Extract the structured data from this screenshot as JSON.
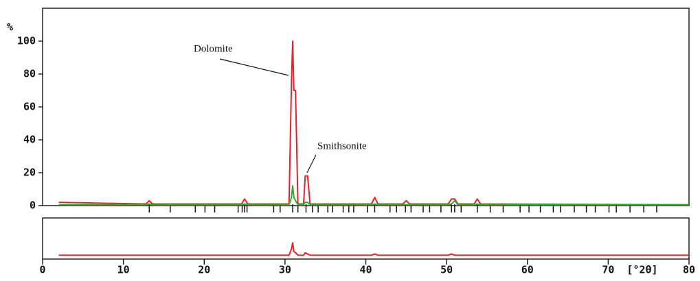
{
  "chart_data": {
    "type": "line",
    "y_label": "%",
    "x_label": "[°2θ]",
    "annotations": [
      "Dolomite",
      "Smithsonite"
    ],
    "x": [
      2,
      12.8,
      13.2,
      13.6,
      24.6,
      25,
      25.4,
      30.5,
      30.8,
      30.95,
      31.1,
      31.3,
      31.6,
      32.3,
      32.5,
      32.8,
      33.1,
      40.7,
      41.1,
      41.5,
      44.6,
      45,
      45.4,
      50.2,
      50.6,
      51,
      51.4,
      53.4,
      53.8,
      54.2,
      80
    ],
    "series": [
      {
        "color": "#e8202a",
        "values": [
          2,
          1,
          3,
          1,
          1,
          4,
          1,
          1,
          75,
          100,
          70,
          70,
          1,
          1,
          18,
          18,
          1,
          1,
          5,
          1,
          1,
          3,
          1,
          1,
          4,
          4,
          1,
          1,
          4,
          1,
          0.5
        ]
      },
      {
        "color": "#2eaa2e",
        "values": [
          0.5,
          0.5,
          1,
          0.5,
          0.5,
          1,
          0.5,
          0.5,
          5,
          12,
          5,
          3,
          0.5,
          0.5,
          2,
          2,
          0.5,
          0.5,
          1,
          0.5,
          0.5,
          0.5,
          0.5,
          0.5,
          1,
          3,
          0.5,
          0.5,
          1,
          0.5,
          0.5
        ]
      },
      {
        "color": "#e8202a",
        "axis": "y2",
        "values": [
          0,
          0,
          0,
          0,
          0,
          0,
          0,
          0,
          5,
          10,
          3,
          2,
          0,
          0,
          2,
          1,
          0,
          0,
          1,
          0,
          0,
          0,
          0,
          0,
          1,
          0,
          0,
          0,
          0,
          0,
          0
        ]
      }
    ],
    "reflections": [
      13.2,
      15.8,
      18.9,
      20.1,
      21.3,
      24.2,
      24.7,
      25.0,
      25.3,
      28.6,
      29.4,
      30.95,
      31.6,
      32.6,
      33.4,
      34.1,
      35.3,
      35.9,
      37.2,
      37.9,
      38.5,
      40.2,
      41.1,
      43.0,
      43.8,
      44.9,
      45.6,
      47.1,
      47.9,
      49.3,
      50.6,
      51.0,
      51.8,
      53.8,
      55.4,
      57.0,
      59.1,
      60.2,
      61.6,
      63.2,
      64.1,
      65.8,
      67.3,
      68.4,
      70.1,
      71.0,
      72.7,
      74.4,
      76.0
    ],
    "xlim": [
      0,
      80
    ],
    "xticks": [
      0,
      10,
      20,
      30,
      40,
      50,
      60,
      70,
      80
    ],
    "ylim": [
      0,
      120
    ],
    "yticks": [
      0,
      20,
      40,
      60,
      80,
      100
    ],
    "y2lim": [
      -2,
      30
    ]
  }
}
